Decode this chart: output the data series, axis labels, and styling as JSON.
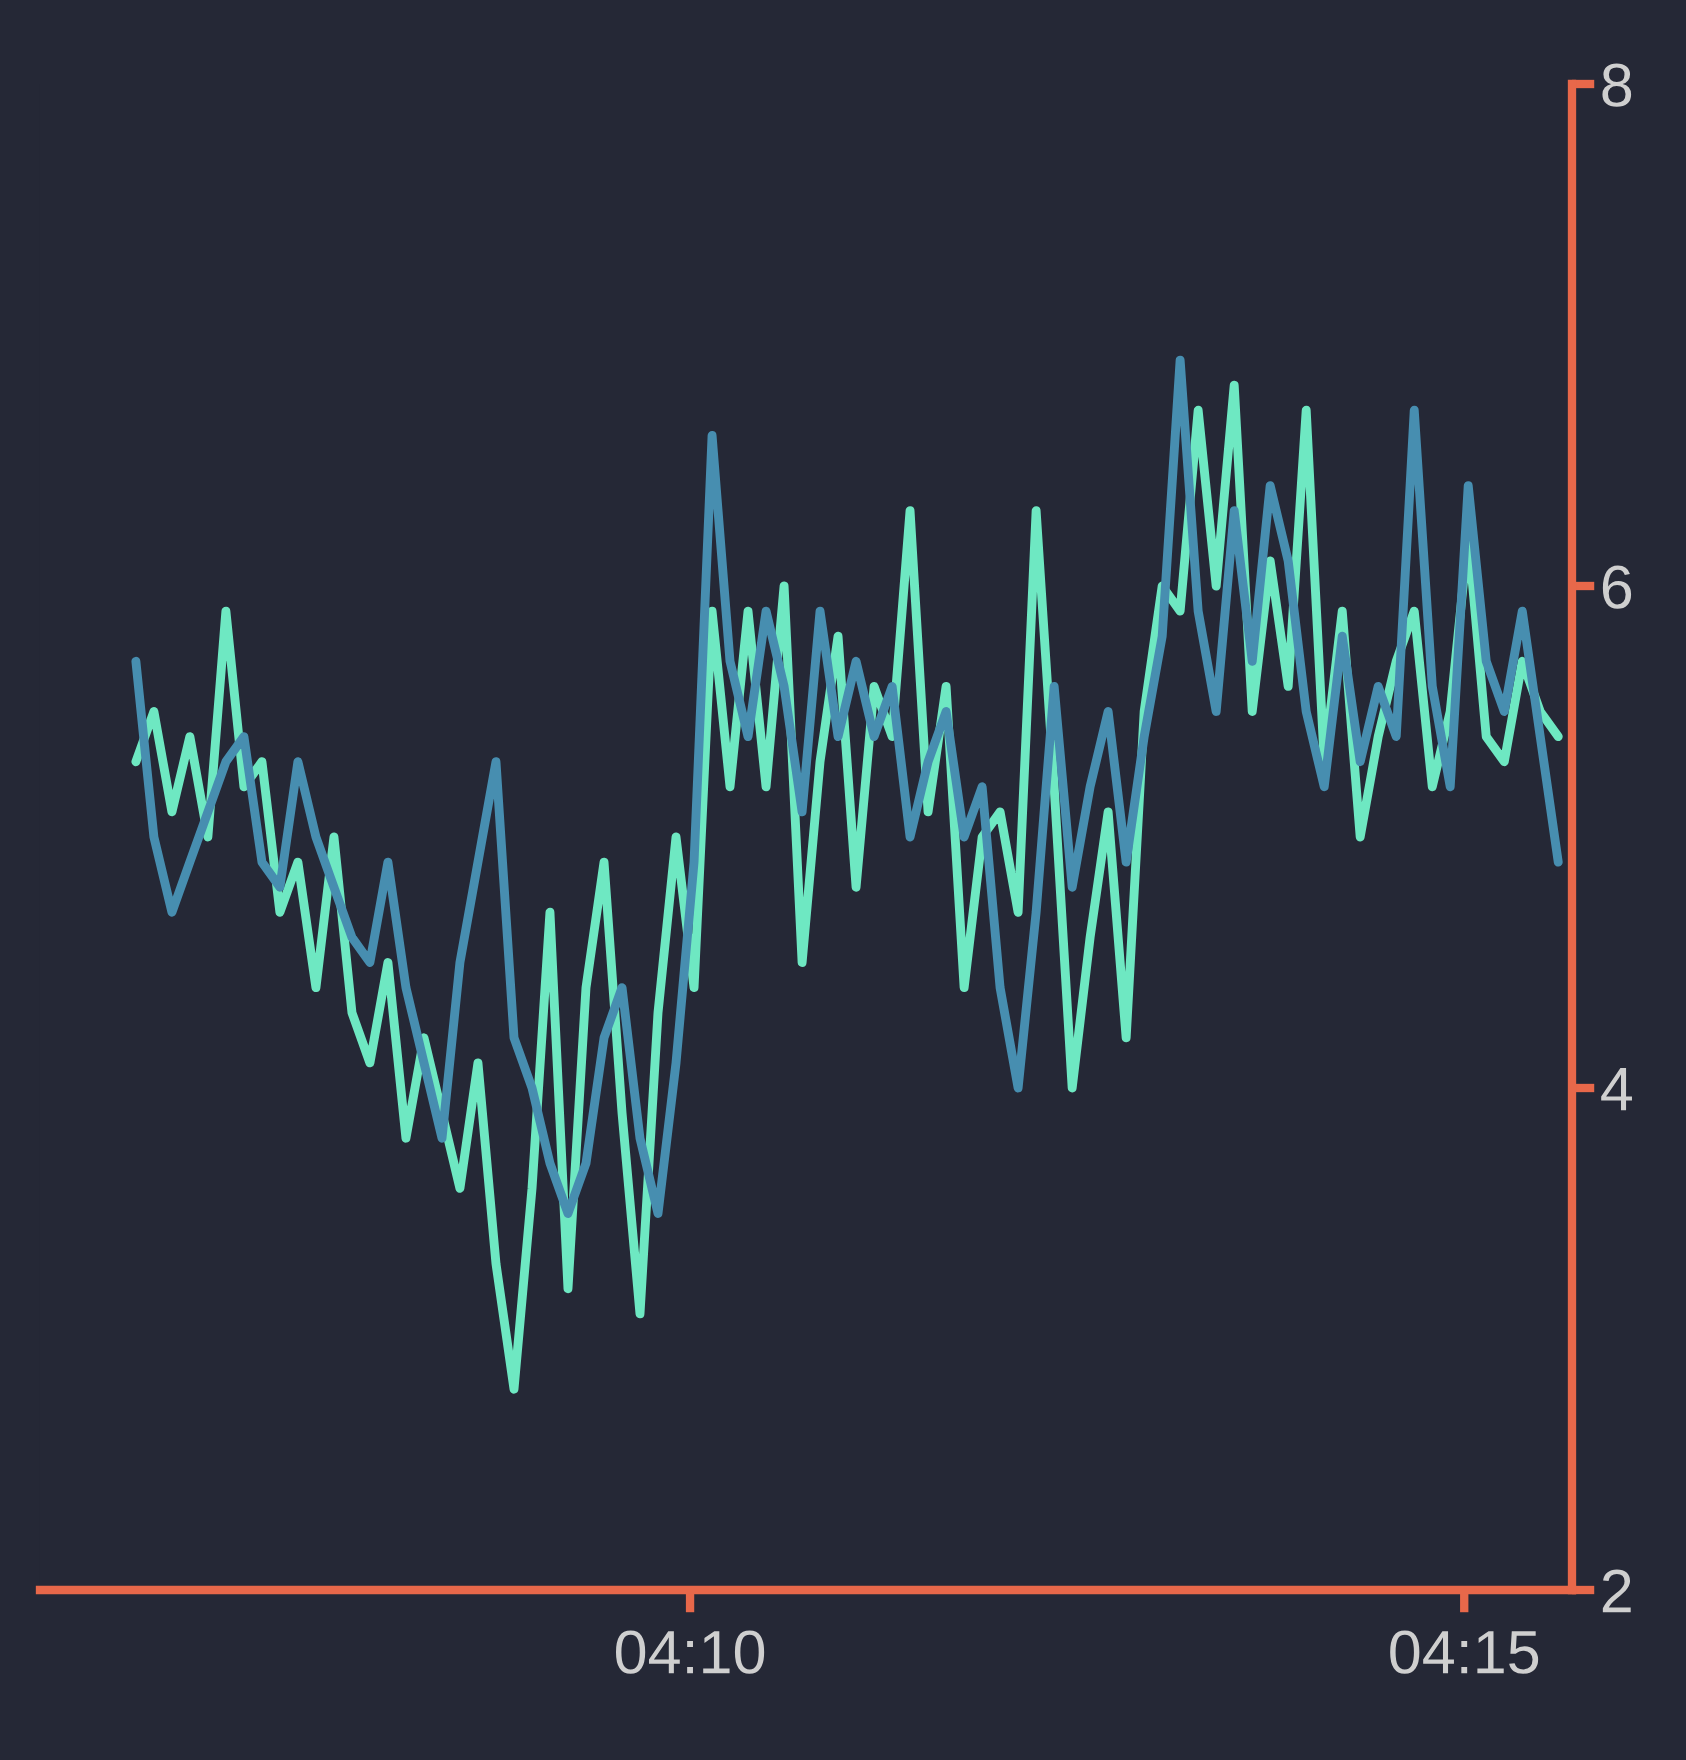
{
  "chart_data": {
    "type": "line",
    "x": [
      4.10702,
      4.10896,
      4.1109,
      4.11283,
      4.11477,
      4.11671,
      4.11865,
      4.12059,
      4.12252,
      4.12446,
      4.1264,
      4.12834,
      4.13028,
      4.13221,
      4.13415,
      4.13609,
      4.13803,
      4.13997,
      4.1419,
      4.14384,
      4.14578,
      4.14772,
      4.14966,
      4.15159,
      4.15353,
      4.15547,
      4.15741,
      4.15935,
      4.16128,
      4.16322,
      4.16516,
      4.1671,
      4.16904,
      4.17097,
      4.17291,
      4.17485,
      4.17679,
      4.17873,
      4.18066,
      4.1826,
      4.18454,
      4.18648,
      4.18842,
      4.19035,
      4.19229,
      4.19423,
      4.19617,
      4.19811,
      4.20004,
      4.20198,
      4.20392,
      4.20586,
      4.2078,
      4.20973,
      4.21167,
      4.21361,
      4.21555,
      4.21749,
      4.21942,
      4.22136,
      4.2233,
      4.22524,
      4.22718,
      4.22911,
      4.23105,
      4.23299,
      4.23493,
      4.23687,
      4.2388,
      4.24074,
      4.24268,
      4.24462,
      4.24656,
      4.24849,
      4.25043,
      4.25237,
      4.25431,
      4.25625,
      4.25818,
      4.26012
    ],
    "series": [
      {
        "color": "#6ee8c2",
        "values": [
          5.3,
          5.5,
          5.1,
          5.4,
          5.0,
          5.9,
          5.2,
          5.3,
          4.7,
          4.9,
          4.4,
          5.0,
          4.3,
          4.1,
          4.5,
          3.8,
          4.2,
          3.9,
          3.6,
          4.1,
          3.3,
          2.8,
          3.6,
          4.7,
          3.2,
          4.4,
          4.9,
          3.9,
          3.1,
          4.3,
          5.0,
          4.4,
          5.9,
          5.2,
          5.9,
          5.2,
          6.0,
          4.5,
          5.3,
          5.8,
          4.8,
          5.6,
          5.4,
          6.3,
          5.1,
          5.6,
          4.4,
          5.0,
          5.1,
          4.7,
          6.3,
          5.2,
          4.0,
          4.6,
          5.1,
          4.2,
          5.5,
          6.0,
          5.9,
          6.7,
          6.0,
          6.8,
          5.5,
          6.1,
          5.6,
          6.7,
          5.3,
          5.9,
          5.0,
          5.4,
          5.7,
          5.9,
          5.2,
          5.5,
          6.2,
          5.4,
          5.3,
          5.7,
          5.5,
          5.4
        ]
      },
      {
        "color": "#478eb0",
        "values": [
          5.7,
          5.0,
          4.7,
          4.9,
          5.1,
          5.3,
          5.4,
          4.9,
          4.8,
          5.3,
          5.0,
          4.8,
          4.6,
          4.5,
          4.9,
          4.4,
          4.1,
          3.8,
          4.5,
          4.9,
          5.3,
          4.2,
          4.0,
          3.7,
          3.5,
          3.7,
          4.2,
          4.4,
          3.8,
          3.5,
          4.1,
          4.9,
          6.6,
          5.7,
          5.4,
          5.9,
          5.6,
          5.1,
          5.9,
          5.4,
          5.7,
          5.4,
          5.6,
          5.0,
          5.3,
          5.5,
          5.0,
          5.2,
          4.4,
          4.0,
          4.7,
          5.6,
          4.8,
          5.2,
          5.5,
          4.9,
          5.4,
          5.8,
          6.9,
          5.9,
          5.5,
          6.3,
          5.7,
          6.4,
          6.1,
          5.5,
          5.2,
          5.8,
          5.3,
          5.6,
          5.4,
          6.7,
          5.6,
          5.2,
          6.4,
          5.7,
          5.5,
          5.9,
          5.4,
          4.9
        ]
      }
    ],
    "xlim": [
      4.0967,
      4.2616
    ],
    "xticks": [
      {
        "value": 4.16667,
        "label": "04:10"
      },
      {
        "value": 4.25,
        "label": "04:15"
      }
    ],
    "ylim": [
      2,
      8
    ],
    "yticks": [
      2,
      4,
      6,
      8
    ]
  }
}
